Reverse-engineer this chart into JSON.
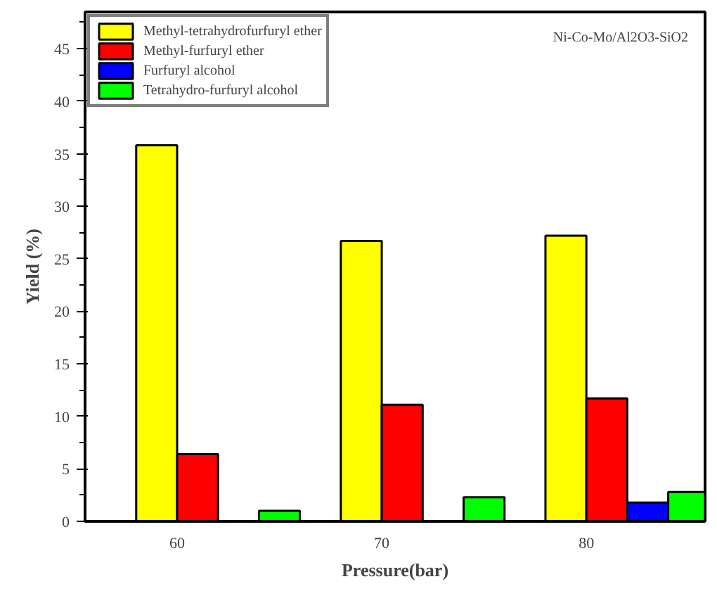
{
  "chart_data": {
    "type": "bar",
    "xlabel": "Pressure(bar)",
    "ylabel": "Yield (%)",
    "categories": [
      "60",
      "70",
      "80"
    ],
    "series": [
      {
        "name": "Methyl-tetrahydrofurfuryl ether",
        "color": "#ffff00",
        "values": [
          35.8,
          26.7,
          27.2
        ]
      },
      {
        "name": "Methyl-furfuryl ether",
        "color": "#ff0000",
        "values": [
          6.4,
          11.1,
          11.7
        ]
      },
      {
        "name": "Furfuryl alcohol",
        "color": "#0000ff",
        "values": [
          null,
          null,
          1.8
        ]
      },
      {
        "name": "Tetrahydro-furfuryl alcohol",
        "color": "#00ff00",
        "values": [
          1.0,
          2.3,
          2.8
        ]
      }
    ],
    "ylim": [
      0,
      48.5
    ],
    "yticks": [
      0,
      5,
      10,
      15,
      20,
      25,
      30,
      35,
      40,
      45
    ],
    "annotations": [
      "Ni-Co-Mo/Al2O3-SiO2"
    ],
    "legend": "top left",
    "grid": false
  }
}
